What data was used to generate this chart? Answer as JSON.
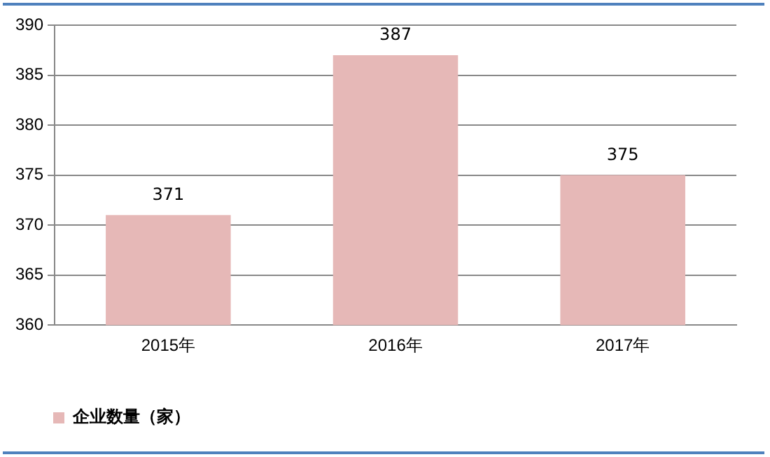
{
  "chart_data": {
    "type": "bar",
    "categories": [
      "2015年",
      "2016年",
      "2017年"
    ],
    "series": [
      {
        "name": "企业数量（家）",
        "color": "#e6b8b7",
        "values": [
          371,
          387,
          375
        ]
      }
    ],
    "ylim": [
      360,
      390
    ],
    "yticks": [
      360,
      365,
      370,
      375,
      380,
      385,
      390
    ],
    "grid": "y",
    "legend": "bottom left",
    "data_labels": true
  }
}
